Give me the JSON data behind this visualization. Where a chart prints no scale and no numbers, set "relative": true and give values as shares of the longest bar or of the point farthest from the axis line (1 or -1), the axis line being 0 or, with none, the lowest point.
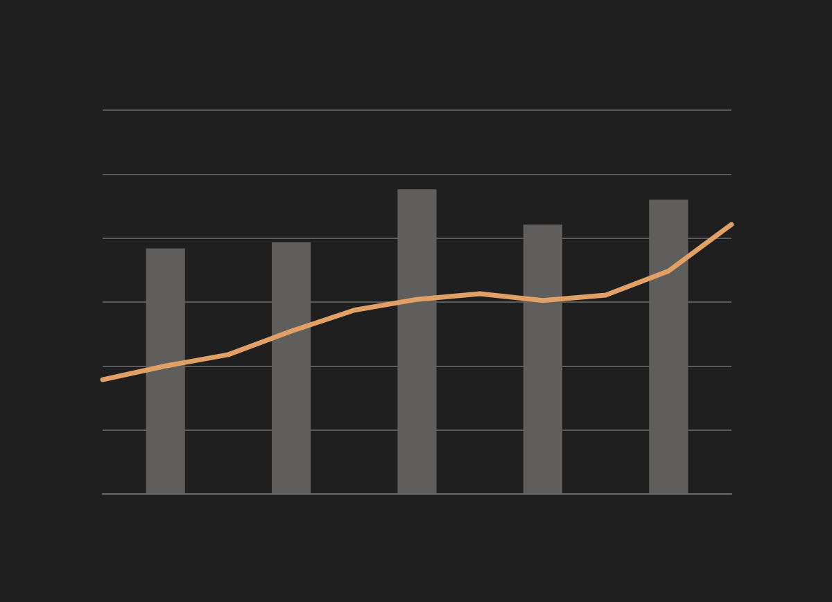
{
  "chart_data": [
    {
      "type": "bar",
      "relative": true,
      "grid": "y",
      "categories": [
        null,
        null,
        null,
        null,
        null
      ],
      "series": [
        {
          "color": "#5f5e5c",
          "values": [
            0.806,
            0.827,
            1,
            0.884,
            0.966
          ]
        }
      ]
    },
    {
      "type": "line",
      "relative": true,
      "marker": "none",
      "categories": [
        null,
        null,
        null,
        null,
        null,
        null,
        null,
        null,
        null,
        null,
        null
      ],
      "series": [
        {
          "color": "#e0a066",
          "values": [
            0.424,
            0.475,
            0.517,
            0.604,
            0.682,
            0.722,
            0.743,
            0.718,
            0.738,
            0.827,
            1
          ]
        }
      ]
    }
  ]
}
